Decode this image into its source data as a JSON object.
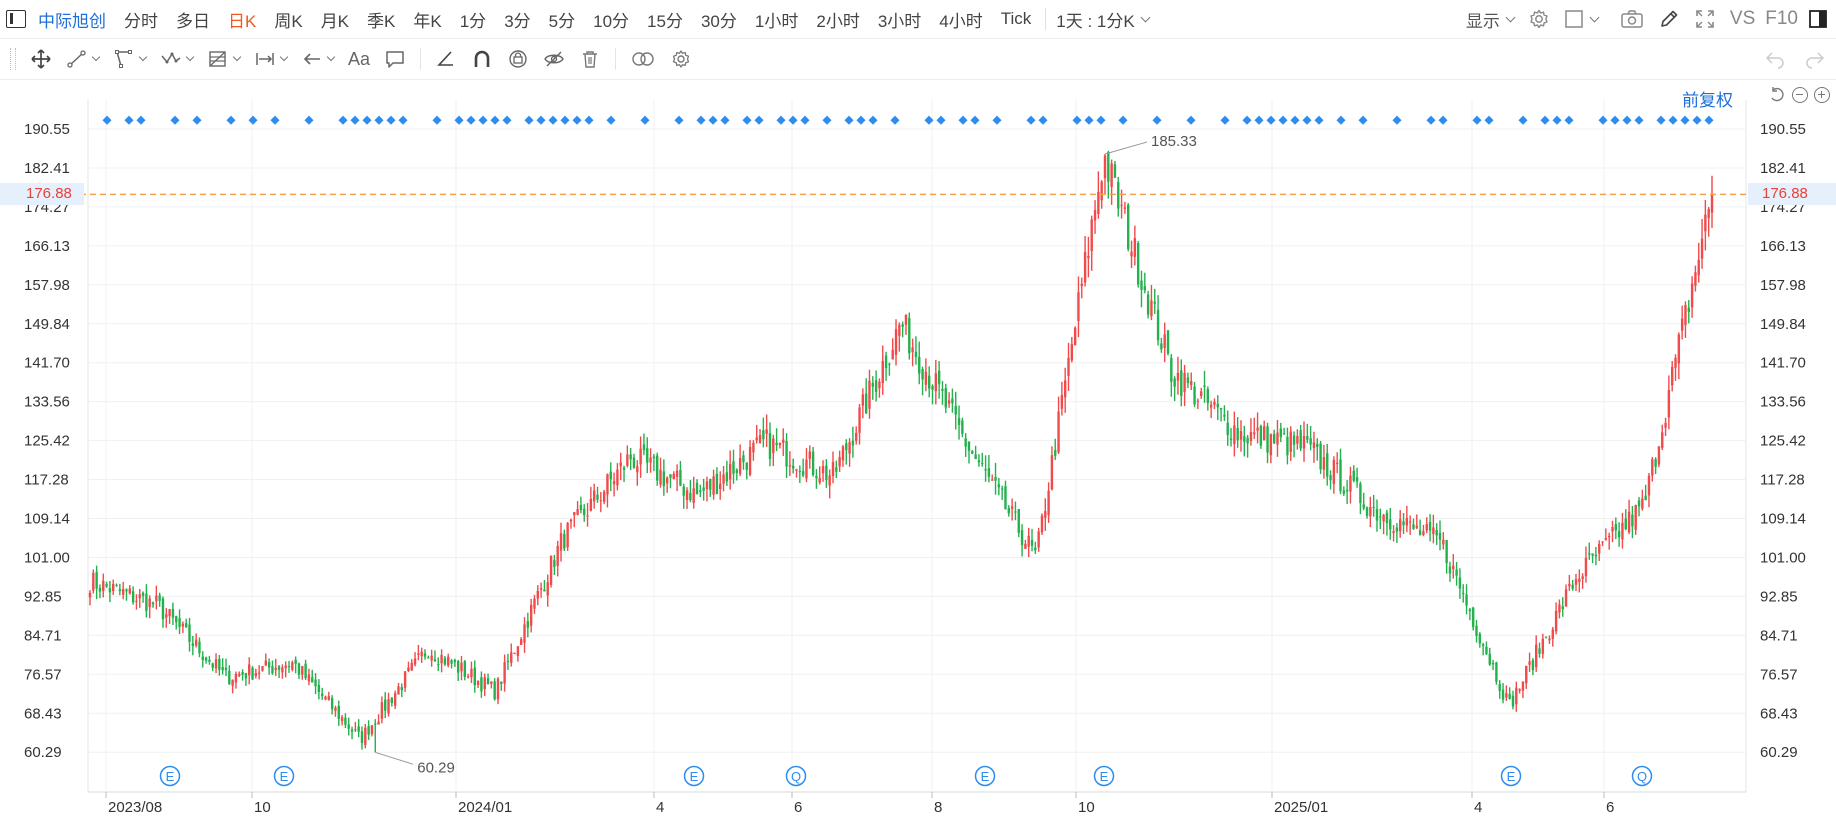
{
  "header": {
    "stock_name": "中际旭创",
    "periods": [
      "分时",
      "多日",
      "日K",
      "周K",
      "月K",
      "季K",
      "年K",
      "1分",
      "3分",
      "5分",
      "10分",
      "15分",
      "30分",
      "1小时",
      "2小时",
      "3小时",
      "4小时",
      "Tick"
    ],
    "active_period": "日K",
    "range_select": "1天 : 1分K",
    "display_label": "显示",
    "vs_label": "VS",
    "f10_label": "F10"
  },
  "toolbar": {
    "text_tool_label": "Aa"
  },
  "chart": {
    "adjust_label": "前复权",
    "current_price_label": "176.88",
    "high_annotation": "185.33",
    "low_annotation": "60.29",
    "colors": {
      "up": "#f04a4a",
      "down": "#22b14c",
      "marker": "#2d8cf0",
      "current_line": "#f5a04a",
      "grid": "#f0f0f0",
      "accent": "#1e6fd9",
      "active_period": "#f05a22"
    }
  },
  "chart_data": {
    "type": "candlestick",
    "title": "",
    "ylim": [
      56,
      194
    ],
    "y_ticks": [
      "190.55",
      "182.41",
      "174.27",
      "166.13",
      "157.98",
      "149.84",
      "141.70",
      "133.56",
      "125.42",
      "117.28",
      "109.14",
      "101.00",
      "92.85",
      "84.71",
      "76.57",
      "68.43",
      "60.29"
    ],
    "x_ticks": [
      "2023/08",
      "10",
      "2024/01",
      "4",
      "6",
      "8",
      "10",
      "2025/01",
      "4",
      "6"
    ],
    "current_price": 176.88,
    "max_price": 185.33,
    "min_price": 60.29,
    "event_markers": [
      "E",
      "E",
      "E",
      "Q",
      "E",
      "E",
      "E",
      "Q"
    ],
    "price_path_keypoints": [
      {
        "date": "2023/07",
        "close": 96
      },
      {
        "date": "2023/08",
        "close": 91
      },
      {
        "date": "2023/09",
        "close": 76
      },
      {
        "date": "2023/10",
        "close": 79
      },
      {
        "date": "2023/11",
        "close": 63
      },
      {
        "date": "2023/12",
        "close": 82
      },
      {
        "date": "2024/01",
        "close": 73
      },
      {
        "date": "2024/02",
        "close": 105
      },
      {
        "date": "2024/03",
        "close": 122
      },
      {
        "date": "2024/04",
        "close": 114
      },
      {
        "date": "2024/05",
        "close": 125
      },
      {
        "date": "2024/06",
        "close": 118
      },
      {
        "date": "2024/07",
        "close": 150
      },
      {
        "date": "2024/08",
        "close": 124
      },
      {
        "date": "2024/09",
        "close": 101
      },
      {
        "date": "2024/10",
        "close": 185
      },
      {
        "date": "2024/11",
        "close": 140
      },
      {
        "date": "2024/12",
        "close": 127
      },
      {
        "date": "2025/01",
        "close": 124
      },
      {
        "date": "2025/02",
        "close": 111
      },
      {
        "date": "2025/03",
        "close": 104
      },
      {
        "date": "2025/04",
        "close": 70
      },
      {
        "date": "2025/05",
        "close": 97
      },
      {
        "date": "2025/06",
        "close": 112
      },
      {
        "date": "2025/07",
        "close": 176.88
      }
    ]
  }
}
